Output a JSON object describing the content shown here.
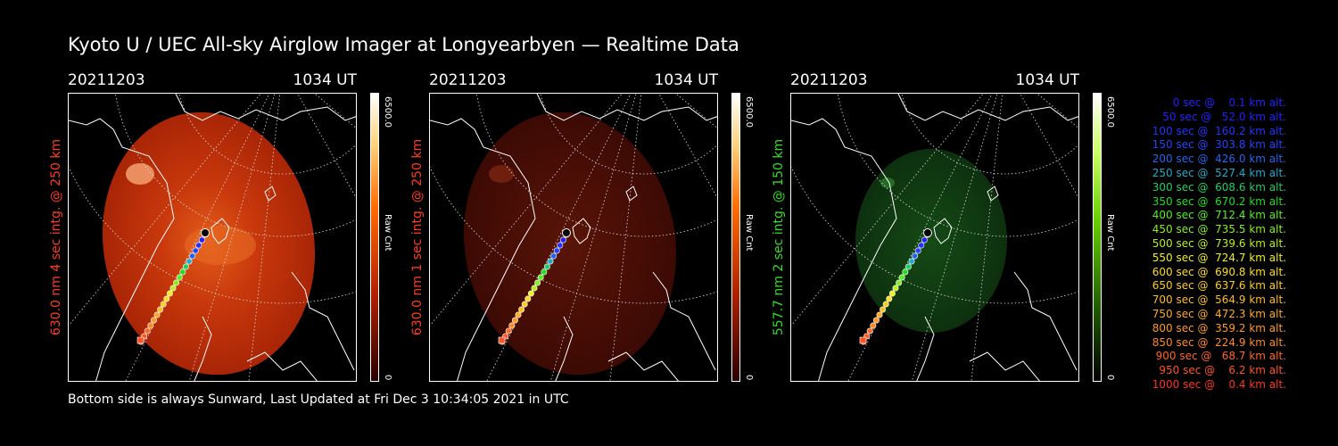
{
  "title": "Kyoto U / UEC All-sky Airglow Imager at Longyearbyen — Realtime Data",
  "footer": "Bottom side is always Sunward, Last Updated at Fri Dec  3 10:34:05 2021 in UTC",
  "colors": {
    "red_label": "#ff3b1f",
    "green_label": "#33dd22",
    "red_disc": "#c83008",
    "red_disc_dim": "#4a0c04",
    "green_disc": "#0f3a10"
  },
  "panels": [
    {
      "date": "20211203",
      "time": "1034 UT",
      "ylabel": "630.0 nm 4 sec intg. @ 250 km",
      "label_color": "#ff3b1f",
      "colorbar": {
        "max": "6500.0",
        "min": "0",
        "unit": "Raw Cnt",
        "palette": "red"
      }
    },
    {
      "date": "20211203",
      "time": "1034 UT",
      "ylabel": "630.0 nm 1 sec intg. @ 250 km",
      "label_color": "#ff3b1f",
      "colorbar": {
        "max": "6500.0",
        "min": "0",
        "unit": "Raw Cnt",
        "palette": "red"
      }
    },
    {
      "date": "20211203",
      "time": "1034 UT",
      "ylabel": "557.7 nm 2 sec intg. @ 150 km",
      "label_color": "#33dd22",
      "colorbar": {
        "max": "6500.0",
        "min": "0",
        "unit": "Raw Cnt",
        "palette": "green"
      }
    }
  ],
  "legend": [
    {
      "text": "0 sec @    0.1 km alt.",
      "color": "#2222ff"
    },
    {
      "text": "50 sec @   52.0 km alt.",
      "color": "#2222ff"
    },
    {
      "text": "100 sec @  160.2 km alt.",
      "color": "#2233ff"
    },
    {
      "text": "150 sec @  303.8 km alt.",
      "color": "#2244ff"
    },
    {
      "text": "200 sec @  426.0 km alt.",
      "color": "#2266ee"
    },
    {
      "text": "250 sec @  527.4 km alt.",
      "color": "#22aacc"
    },
    {
      "text": "300 sec @  608.6 km alt.",
      "color": "#22cc66"
    },
    {
      "text": "350 sec @  670.2 km alt.",
      "color": "#22dd22"
    },
    {
      "text": "400 sec @  712.4 km alt.",
      "color": "#55ee22"
    },
    {
      "text": "450 sec @  735.5 km alt.",
      "color": "#88ee22"
    },
    {
      "text": "500 sec @  739.6 km alt.",
      "color": "#bbee22"
    },
    {
      "text": "550 sec @  724.7 km alt.",
      "color": "#eeee22"
    },
    {
      "text": "600 sec @  690.8 km alt.",
      "color": "#ffdd22"
    },
    {
      "text": "650 sec @  637.6 km alt.",
      "color": "#ffcc22"
    },
    {
      "text": "700 sec @  564.9 km alt.",
      "color": "#ffbb22"
    },
    {
      "text": "750 sec @  472.3 km alt.",
      "color": "#ffaa22"
    },
    {
      "text": "800 sec @  359.2 km alt.",
      "color": "#ff9922"
    },
    {
      "text": "850 sec @  224.9 km alt.",
      "color": "#ff8822"
    },
    {
      "text": "900 sec @   68.7 km alt.",
      "color": "#ff6622"
    },
    {
      "text": "950 sec @    6.2 km alt.",
      "color": "#ff5522"
    },
    {
      "text": "1000 sec @    0.4 km alt.",
      "color": "#ff3322"
    }
  ]
}
